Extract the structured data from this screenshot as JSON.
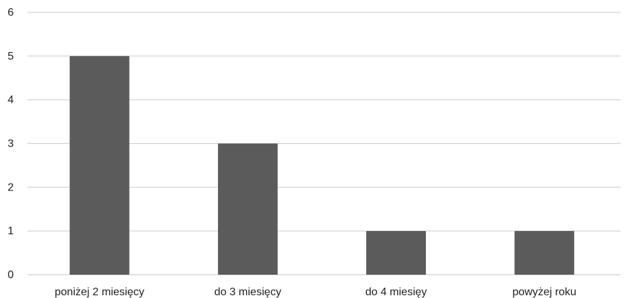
{
  "chart_data": {
    "type": "bar",
    "categories": [
      "poniżej 2 miesięcy",
      "do 3 miesięcy",
      "do 4 miesięy",
      "powyżej roku"
    ],
    "values": [
      5,
      3,
      1,
      1
    ],
    "ylim": [
      0,
      6
    ],
    "yticks": [
      0,
      1,
      2,
      3,
      4,
      5,
      6
    ],
    "grid": true,
    "legend": "none",
    "bar_color": "#5b5b5b",
    "grid_color": "#d0d0d0"
  }
}
